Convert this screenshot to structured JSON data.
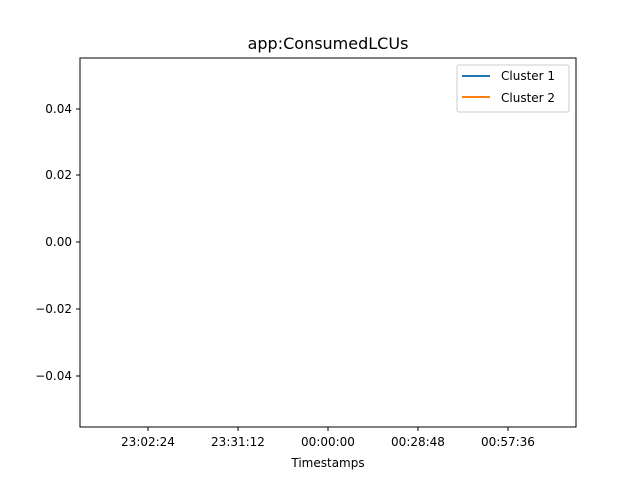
{
  "chart_data": {
    "type": "line",
    "title": "app:ConsumedLCUs",
    "xlabel": "Timestamps",
    "ylabel": "",
    "x_ticks": [
      "23:02:24",
      "23:31:12",
      "00:00:00",
      "00:28:48",
      "00:57:36"
    ],
    "y_ticks": [
      "0.04",
      "0.02",
      "0.00",
      "−0.02",
      "−0.04"
    ],
    "y_tick_values": [
      0.04,
      0.02,
      0.0,
      -0.02,
      -0.04
    ],
    "ylim": [
      -0.055,
      0.055
    ],
    "grid": false,
    "legend_position": "top-right",
    "series": [
      {
        "name": "Cluster 1",
        "color": "#1f77b4",
        "x": [],
        "y": []
      },
      {
        "name": "Cluster 2",
        "color": "#ff7f0e",
        "x": [],
        "y": []
      }
    ]
  }
}
